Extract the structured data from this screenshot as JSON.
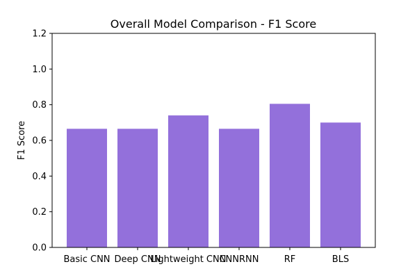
{
  "chart_data": {
    "type": "bar",
    "title": "Overall Model Comparison - F1 Score",
    "xlabel": "",
    "ylabel": "F1 Score",
    "categories": [
      "Basic CNN",
      "Deep CNN",
      "Lightweight CNN",
      "CNNRNN",
      "RF",
      "BLS"
    ],
    "values": [
      0.665,
      0.665,
      0.74,
      0.665,
      0.805,
      0.7
    ],
    "ylim": [
      0,
      1.2
    ],
    "yticks": [
      0.0,
      0.2,
      0.4,
      0.6,
      0.8,
      1.0,
      1.2
    ],
    "ytick_labels": [
      "0.0",
      "0.2",
      "0.4",
      "0.6",
      "0.8",
      "1.0",
      "1.2"
    ],
    "grid": false,
    "bar_color": "#9370db"
  }
}
